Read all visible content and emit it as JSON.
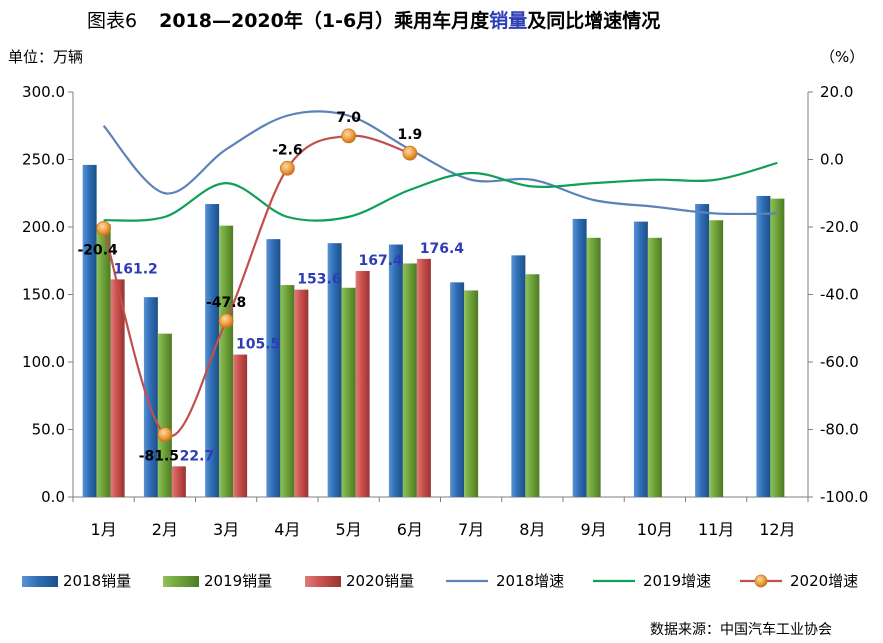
{
  "chart_data": {
    "type": "bar",
    "title_prefix": "图表6",
    "title_main": "2018—2020年（1-6月）乘用车月度",
    "title_highlight": "销量",
    "title_suffix": "及同比增速情况",
    "ylabel_left": "单位：万辆",
    "ylabel_right": "（%）",
    "categories": [
      "1月",
      "2月",
      "3月",
      "4月",
      "5月",
      "6月",
      "7月",
      "8月",
      "9月",
      "10月",
      "11月",
      "12月"
    ],
    "ylim_left": [
      0,
      300
    ],
    "ylim_right": [
      -100,
      20
    ],
    "yticks_left": [
      "0.0",
      "50.0",
      "100.0",
      "150.0",
      "200.0",
      "250.0",
      "300.0"
    ],
    "yticks_right": [
      "-100.0",
      "-80.0",
      "-60.0",
      "-40.0",
      "-20.0",
      "0.0",
      "20.0"
    ],
    "bar_series": [
      {
        "name": "2018销量",
        "color": "#2f6eb5",
        "values": [
          246,
          148,
          217,
          191,
          188,
          187,
          159,
          179,
          206,
          204,
          217,
          223
        ]
      },
      {
        "name": "2019销量",
        "color": "#6fa33a",
        "values": [
          202,
          121,
          201,
          157,
          155,
          173,
          153,
          165,
          192,
          192,
          205,
          221
        ]
      },
      {
        "name": "2020销量",
        "color": "#c9504e",
        "values": [
          161.2,
          22.7,
          105.5,
          153.6,
          167.4,
          176.4
        ],
        "labels": [
          "161.2",
          "22.7",
          "105.5",
          "153.6",
          "167.4",
          "176.4"
        ]
      }
    ],
    "line_series": [
      {
        "name": "2018增速",
        "color": "#5b83b9",
        "values": [
          10,
          -10,
          3,
          13,
          13,
          3,
          -6,
          -6,
          -12,
          -14,
          -16,
          -16
        ]
      },
      {
        "name": "2019增速",
        "color": "#0fa058",
        "values": [
          -18,
          -17,
          -7,
          -17,
          -17,
          -9,
          -4,
          -8,
          -7,
          -6,
          -6,
          -1
        ]
      },
      {
        "name": "2020增速",
        "color": "#c0504d",
        "values": [
          -20.4,
          -81.5,
          -47.8,
          -2.6,
          7.0,
          1.9
        ],
        "labels": [
          "-20.4",
          "-81.5",
          "-47.8",
          "-2.6",
          "7.0",
          "1.9"
        ]
      }
    ],
    "legend_position": "bottom"
  },
  "source": "数据来源：中国汽车工业协会"
}
